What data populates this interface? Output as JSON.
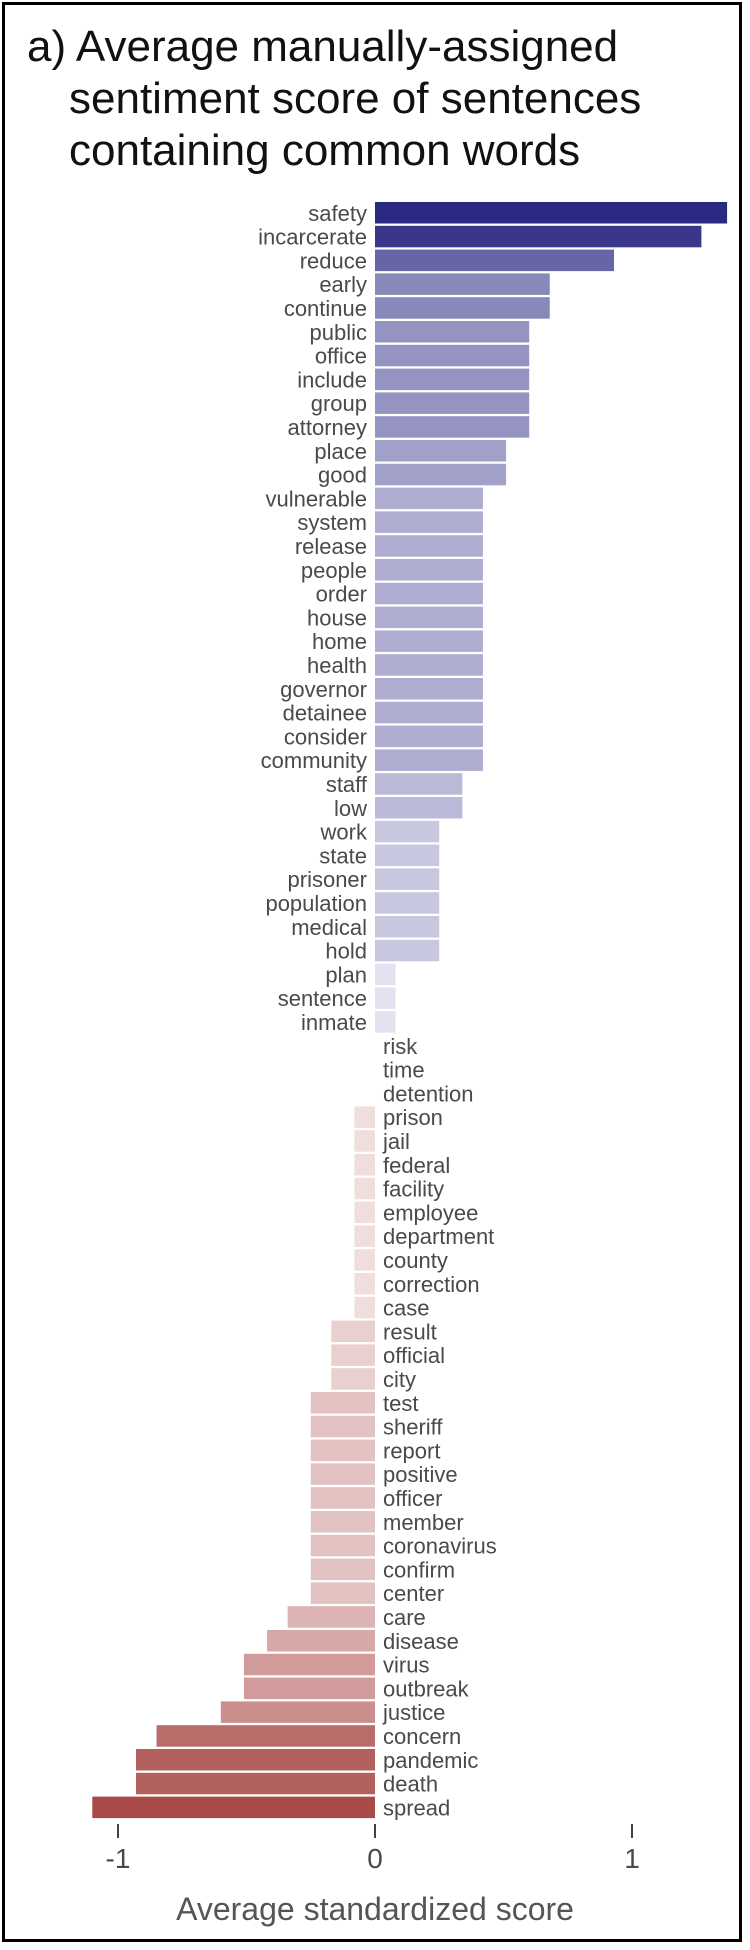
{
  "chart_data": {
    "type": "bar",
    "orientation": "horizontal",
    "title": "a) Average manually-assigned sentiment score of sentences containing common words",
    "title_lines": [
      "a) Average manually-assigned",
      "sentiment score of sentences",
      "containing common words"
    ],
    "xlabel": "Average standardized score",
    "ylabel": "",
    "xlim": [
      -1.15,
      1.45
    ],
    "xticks": [
      -1,
      0,
      1
    ],
    "xtick_labels": [
      "-1",
      "0",
      "1"
    ],
    "grid": false,
    "legend": "none",
    "colors": {
      "positive_dark": "#2b2a82",
      "positive_light": "#f3f2fa",
      "negative_light": "#f8eded",
      "negative_dark": "#a84a48"
    },
    "categories": [
      "safety",
      "incarcerate",
      "reduce",
      "early",
      "continue",
      "public",
      "office",
      "include",
      "group",
      "attorney",
      "place",
      "good",
      "vulnerable",
      "system",
      "release",
      "people",
      "order",
      "house",
      "home",
      "health",
      "governor",
      "detainee",
      "consider",
      "community",
      "staff",
      "low",
      "work",
      "state",
      "prisoner",
      "population",
      "medical",
      "hold",
      "plan",
      "sentence",
      "inmate",
      "risk",
      "time",
      "detention",
      "prison",
      "jail",
      "federal",
      "facility",
      "employee",
      "department",
      "county",
      "correction",
      "case",
      "result",
      "official",
      "city",
      "test",
      "sheriff",
      "report",
      "positive",
      "officer",
      "member",
      "coronavirus",
      "confirm",
      "center",
      "care",
      "disease",
      "virus",
      "outbreak",
      "justice",
      "concern",
      "pandemic",
      "death",
      "spread"
    ],
    "values": [
      1.37,
      1.27,
      0.93,
      0.68,
      0.68,
      0.6,
      0.6,
      0.6,
      0.6,
      0.6,
      0.51,
      0.51,
      0.42,
      0.42,
      0.42,
      0.42,
      0.42,
      0.42,
      0.42,
      0.42,
      0.42,
      0.42,
      0.42,
      0.42,
      0.34,
      0.34,
      0.25,
      0.25,
      0.25,
      0.25,
      0.25,
      0.25,
      0.08,
      0.08,
      0.08,
      0.0,
      0.0,
      0.0,
      -0.08,
      -0.08,
      -0.08,
      -0.08,
      -0.08,
      -0.08,
      -0.08,
      -0.08,
      -0.08,
      -0.17,
      -0.17,
      -0.17,
      -0.25,
      -0.25,
      -0.25,
      -0.25,
      -0.25,
      -0.25,
      -0.25,
      -0.25,
      -0.25,
      -0.34,
      -0.42,
      -0.51,
      -0.51,
      -0.6,
      -0.85,
      -0.93,
      -0.93,
      -1.1
    ]
  }
}
